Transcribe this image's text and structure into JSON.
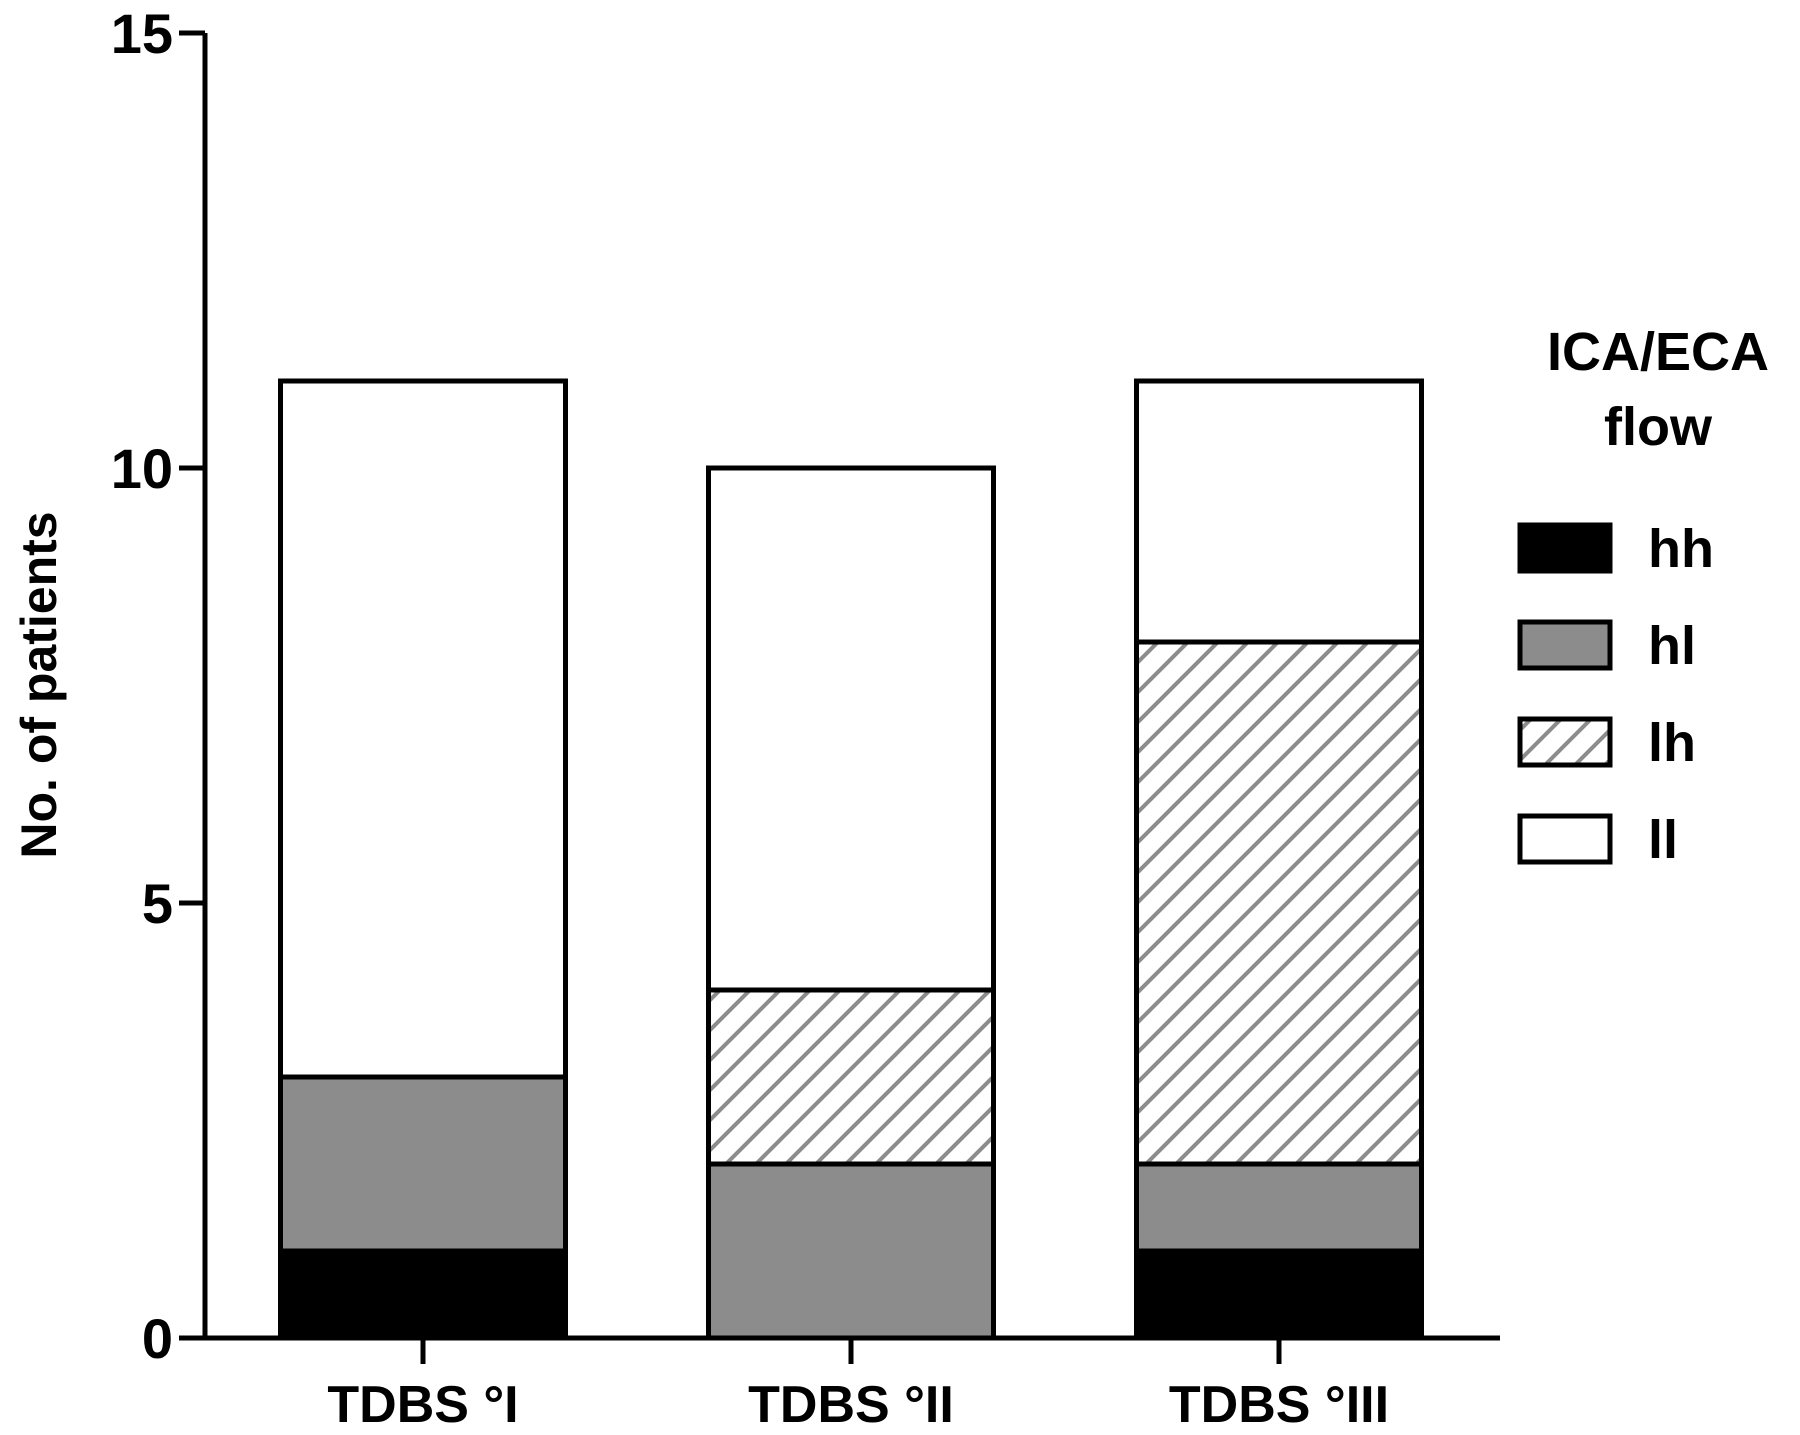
{
  "chart_data": {
    "type": "bar",
    "stacked": true,
    "categories": [
      "TDBS °I",
      "TDBS °II",
      "TDBS °III"
    ],
    "series": [
      {
        "name": "hh",
        "values": [
          1,
          0,
          1
        ],
        "fill": "#000000",
        "pattern": "solid"
      },
      {
        "name": "hl",
        "values": [
          2,
          2,
          1
        ],
        "fill": "#8c8c8c",
        "pattern": "solid"
      },
      {
        "name": "lh",
        "values": [
          0,
          2,
          6
        ],
        "fill": "#ffffff",
        "pattern": "hatch"
      },
      {
        "name": "ll",
        "values": [
          8,
          6,
          3
        ],
        "fill": "#ffffff",
        "pattern": "solid"
      }
    ],
    "ylabel": "No. of patients",
    "xlabel": "",
    "ylim": [
      0,
      15
    ],
    "yticks": [
      "0",
      "5",
      "10",
      "15"
    ],
    "legend_title_lines": [
      "ICA/ECA",
      "flow"
    ],
    "legend_position": "right",
    "grid": false,
    "hatch_color": "#8c8c8c"
  }
}
